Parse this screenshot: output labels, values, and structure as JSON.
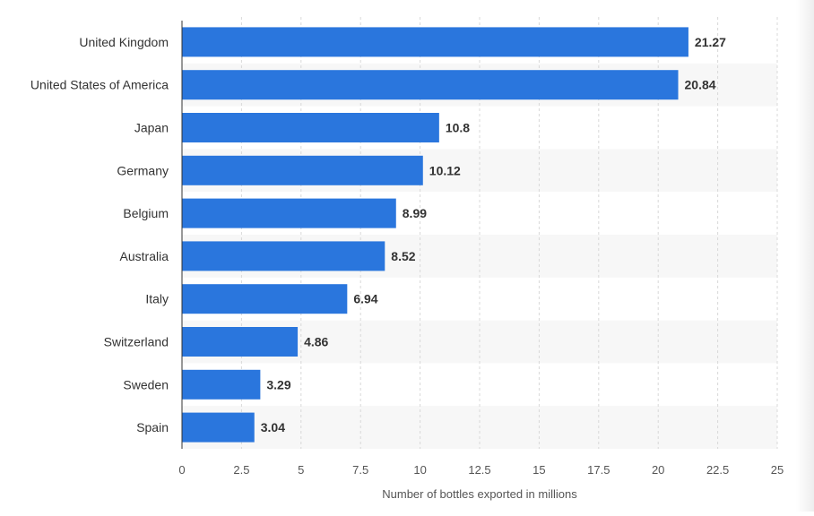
{
  "chart_data": {
    "type": "bar",
    "orientation": "horizontal",
    "categories": [
      "United Kingdom",
      "United States of America",
      "Japan",
      "Germany",
      "Belgium",
      "Australia",
      "Italy",
      "Switzerland",
      "Sweden",
      "Spain"
    ],
    "values": [
      21.27,
      20.84,
      10.8,
      10.12,
      8.99,
      8.52,
      6.94,
      4.86,
      3.29,
      3.04
    ],
    "data_labels": [
      "21.27",
      "20.84",
      "10.8",
      "10.12",
      "8.99",
      "8.52",
      "6.94",
      "4.86",
      "3.29",
      "3.04"
    ],
    "xlabel": "Number of bottles exported in millions",
    "xlim": [
      0,
      25
    ],
    "xticks": [
      0,
      2.5,
      5,
      7.5,
      10,
      12.5,
      15,
      17.5,
      20,
      22.5,
      25
    ],
    "xtick_labels": [
      "0",
      "2.5",
      "5",
      "7.5",
      "10",
      "12.5",
      "15",
      "17.5",
      "20",
      "22.5",
      "25"
    ],
    "grid": "vertical dashed",
    "colors": {
      "bar": "#2a76dd",
      "band": "#f7f7f7",
      "grid": "#d8d8d8",
      "axis": "#333333"
    }
  }
}
